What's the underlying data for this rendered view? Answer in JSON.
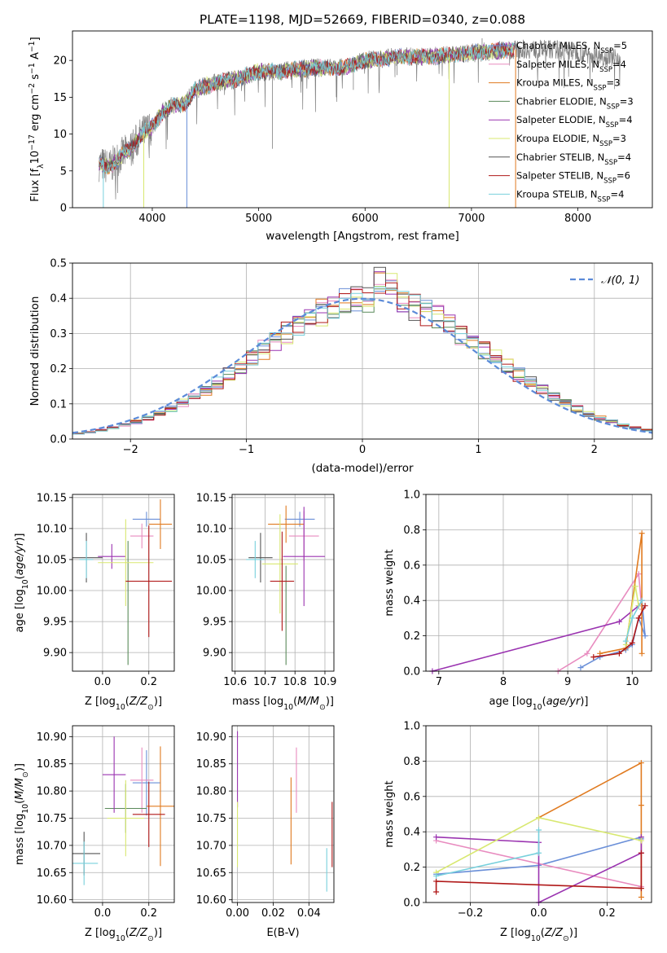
{
  "figure_title": "PLATE=1198, MJD=52669, FIBERID=0340, z=0.088",
  "colors": {
    "chabrier_miles": "#6a8fd8",
    "salpeter_miles": "#e88bbf",
    "kroupa_miles": "#e07a1f",
    "chabrier_elodie": "#5a8a5a",
    "salpeter_elodie": "#9a33b0",
    "kroupa_elodie": "#d8e870",
    "chabrier_stelib": "#555555",
    "salpeter_stelib": "#b01818",
    "kroupa_stelib": "#78d0dc",
    "spectrum": "#808080",
    "gaussian": "#5b8ad8"
  },
  "chart_data": [
    {
      "id": "spectrum",
      "type": "line",
      "title": "PLATE=1198, MJD=52669, FIBERID=0340, z=0.088",
      "xlabel": "wavelength [Angstrom, rest frame]",
      "ylabel": "Flux [f$_\\lambda$10$^{-17}$ erg cm$^{-2}$ s$^{-1}$ A$^{-1}$]",
      "ylabel_parts": [
        "Flux [f",
        "λ",
        "10",
        "−17",
        " erg cm",
        "−2",
        " s",
        "−1",
        " A",
        "−1",
        "]"
      ],
      "xlim": [
        3250,
        8700
      ],
      "ylim": [
        0,
        24
      ],
      "xticks": [
        4000,
        5000,
        6000,
        7000,
        8000
      ],
      "yticks": [
        0,
        5,
        10,
        15,
        20
      ],
      "grid": false,
      "legend_position": "top-right",
      "legend": [
        {
          "pre": "Chabrier MILES, N",
          "sub": "SSP",
          "post": "=5",
          "color": "#6a8fd8"
        },
        {
          "pre": "Salpeter MILES, N",
          "sub": "SSP",
          "post": "=4",
          "color": "#e88bbf"
        },
        {
          "pre": "Kroupa MILES, N",
          "sub": "SSP",
          "post": "=3",
          "color": "#e07a1f"
        },
        {
          "pre": "Chabrier ELODIE, N",
          "sub": "SSP",
          "post": "=3",
          "color": "#5a8a5a"
        },
        {
          "pre": "Salpeter ELODIE, N",
          "sub": "SSP",
          "post": "=4",
          "color": "#9a33b0"
        },
        {
          "pre": "Kroupa ELODIE, N",
          "sub": "SSP",
          "post": "=3",
          "color": "#d8e870"
        },
        {
          "pre": "Chabrier STELIB, N",
          "sub": "SSP",
          "post": "=4",
          "color": "#555555"
        },
        {
          "pre": "Salpeter STELIB, N",
          "sub": "SSP",
          "post": "=6",
          "color": "#b01818"
        },
        {
          "pre": "Kroupa STELIB, N",
          "sub": "SSP",
          "post": "=4",
          "color": "#78d0dc"
        }
      ],
      "continuum_x": [
        3500,
        3600,
        3700,
        3800,
        3900,
        4000,
        4100,
        4200,
        4300,
        4400,
        4600,
        4800,
        5000,
        5200,
        5500,
        5800,
        6000,
        6300,
        6600,
        7000,
        7400,
        7800,
        8300
      ],
      "continuum_y": [
        6,
        5.5,
        7,
        8,
        10,
        11,
        13,
        14,
        14,
        16,
        17,
        17.5,
        18.5,
        18.5,
        19,
        19,
        20,
        20.5,
        20.5,
        21,
        21.5,
        21.5,
        20.5
      ],
      "model_range": [
        3500,
        7400
      ],
      "data_range": [
        3500,
        8400
      ],
      "dropouts": [
        {
          "x": 3540,
          "y": 0,
          "series": 8
        },
        {
          "x": 3920,
          "y": 0,
          "series": 5
        },
        {
          "x": 4325,
          "y": 0,
          "series": 0
        },
        {
          "x": 6790,
          "y": 0,
          "series": 5
        },
        {
          "x": 7415,
          "y": 0,
          "series": 2
        }
      ],
      "spikes": [
        {
          "x": 5130,
          "y": 8
        },
        {
          "x": 5200,
          "y": 19
        },
        {
          "x": 5890,
          "y": 16
        },
        {
          "x": 6300,
          "y": 18
        },
        {
          "x": 7100,
          "y": 23
        }
      ]
    },
    {
      "id": "residual-histogram",
      "type": "line",
      "xlabel": "(data-model)/error",
      "ylabel": "Normed distribution",
      "xlim": [
        -2.5,
        2.5
      ],
      "ylim": [
        0,
        0.5
      ],
      "xticks": [
        -2,
        -1,
        0,
        1,
        2
      ],
      "yticks": [
        0.0,
        0.1,
        0.2,
        0.3,
        0.4,
        0.5
      ],
      "grid": true,
      "legend_position": "top-right",
      "legend": [
        {
          "label": "$\\mathcal{N}(0,1)$",
          "display": "𝒩(0, 1)",
          "style": "dashed",
          "color": "#5b8ad8"
        }
      ],
      "gaussian": {
        "mean": 0,
        "sigma": 1
      },
      "bin_width": 0.1,
      "bins_from": -2.5,
      "histograms_note": "nine step histograms close to N(0,1), one per model; peak near 0.47 around x≈0.25"
    },
    {
      "id": "age-vs-Z",
      "type": "scatter",
      "xlabel": "Z [log$_{10}$($Z/Z_\\odot$)]",
      "ylabel": "age  [log$_{10}$($age/yr$)]",
      "xlim": [
        -0.13,
        0.31
      ],
      "ylim": [
        9.87,
        10.155
      ],
      "xticks": [
        0.0,
        0.2
      ],
      "yticks": [
        9.9,
        9.95,
        10.0,
        10.05,
        10.1,
        10.15
      ],
      "grid": true,
      "points": [
        {
          "series": 0,
          "x": 0.19,
          "y": 10.115,
          "xerr": 0.06,
          "yerr": 0.012
        },
        {
          "series": 1,
          "x": 0.17,
          "y": 10.088,
          "xerr": 0.05,
          "yerr": 0.02
        },
        {
          "series": 2,
          "x": 0.25,
          "y": 10.107,
          "xerr": 0.05,
          "yerr": 0.04
        },
        {
          "series": 3,
          "x": 0.11,
          "y": 9.98,
          "xerr": 0.0,
          "yerr": 0.1
        },
        {
          "series": 4,
          "x": 0.04,
          "y": 10.055,
          "xerr": 0.06,
          "yerr": 0.02
        },
        {
          "series": 5,
          "x": 0.1,
          "y": 10.045,
          "xerr": 0.12,
          "yerr": 0.07
        },
        {
          "series": 6,
          "x": -0.07,
          "y": 10.053,
          "xerr": 0.07,
          "yerr": 0.04
        },
        {
          "series": 7,
          "x": 0.2,
          "y": 10.015,
          "xerr": 0.1,
          "yerr": 0.09
        },
        {
          "series": 8,
          "x": -0.07,
          "y": 10.05,
          "xerr": 0.03,
          "yerr": 0.03
        }
      ]
    },
    {
      "id": "age-vs-mass",
      "type": "scatter",
      "xlabel": "mass [log$_{10}$($M/M_\\odot$)]",
      "ylabel": "",
      "xlim": [
        10.59,
        10.93
      ],
      "ylim": [
        9.87,
        10.155
      ],
      "xticks": [
        10.6,
        10.7,
        10.8,
        10.9
      ],
      "yticks": [
        9.9,
        9.95,
        10.0,
        10.05,
        10.1,
        10.15
      ],
      "grid": true,
      "points": [
        {
          "series": 0,
          "x": 10.816,
          "y": 10.115,
          "xerr": 0.05,
          "yerr": 0.012
        },
        {
          "series": 1,
          "x": 10.83,
          "y": 10.088,
          "xerr": 0.05,
          "yerr": 0.04
        },
        {
          "series": 2,
          "x": 10.77,
          "y": 10.107,
          "xerr": 0.06,
          "yerr": 0.03
        },
        {
          "series": 3,
          "x": 10.77,
          "y": 9.96,
          "xerr": 0.0,
          "yerr": 0.08
        },
        {
          "series": 4,
          "x": 10.83,
          "y": 10.055,
          "xerr": 0.07,
          "yerr": 0.08
        },
        {
          "series": 5,
          "x": 10.75,
          "y": 10.043,
          "xerr": 0.06,
          "yerr": 0.08
        },
        {
          "series": 6,
          "x": 10.685,
          "y": 10.053,
          "xerr": 0.04,
          "yerr": 0.04
        },
        {
          "series": 7,
          "x": 10.757,
          "y": 10.015,
          "xerr": 0.04,
          "yerr": 0.08
        },
        {
          "series": 8,
          "x": 10.667,
          "y": 10.05,
          "xerr": 0.03,
          "yerr": 0.03
        }
      ]
    },
    {
      "id": "mass-weight-vs-age",
      "type": "line",
      "xlabel": "age  [log$_{10}$($age/yr$)]",
      "ylabel": "mass weight",
      "xlim": [
        6.8,
        10.3
      ],
      "ylim": [
        0,
        1.0
      ],
      "xticks": [
        7,
        8,
        9,
        10
      ],
      "yticks": [
        0.0,
        0.2,
        0.4,
        0.6,
        0.8,
        1.0
      ],
      "grid": true,
      "series": [
        {
          "series": 0,
          "x": [
            9.2,
            9.5,
            9.9,
            10.0,
            10.1,
            10.2,
            10.15
          ],
          "y": [
            0.02,
            0.08,
            0.12,
            0.15,
            0.3,
            0.2,
            0.4
          ]
        },
        {
          "series": 1,
          "x": [
            8.85,
            9.3,
            10.1,
            10.15
          ],
          "y": [
            0.0,
            0.1,
            0.55,
            0.35
          ]
        },
        {
          "series": 2,
          "x": [
            9.5,
            9.9,
            10.15,
            10.15
          ],
          "y": [
            0.1,
            0.13,
            0.78,
            0.1
          ]
        },
        {
          "series": 4,
          "x": [
            6.9,
            9.8,
            10.1
          ],
          "y": [
            0.0,
            0.28,
            0.37
          ]
        },
        {
          "series": 5,
          "x": [
            9.9,
            10.05,
            10.1
          ],
          "y": [
            0.15,
            0.48,
            0.37
          ]
        },
        {
          "series": 7,
          "x": [
            9.4,
            9.8,
            10.0,
            10.1,
            10.2
          ],
          "y": [
            0.08,
            0.1,
            0.16,
            0.3,
            0.37
          ]
        },
        {
          "series": 8,
          "x": [
            9.9,
            10.0,
            10.15
          ],
          "y": [
            0.17,
            0.3,
            0.4
          ]
        }
      ]
    },
    {
      "id": "mass-vs-Z",
      "type": "scatter",
      "xlabel": "Z [log$_{10}$($Z/Z_\\odot$)]",
      "ylabel": "mass [log$_{10}$($M/M_\\odot$)]",
      "xlim": [
        -0.13,
        0.31
      ],
      "ylim": [
        10.595,
        10.92
      ],
      "xticks": [
        0.0,
        0.2
      ],
      "yticks": [
        10.6,
        10.65,
        10.7,
        10.75,
        10.8,
        10.85,
        10.9
      ],
      "grid": true,
      "points": [
        {
          "series": 0,
          "x": 0.19,
          "y": 10.815,
          "xerr": 0.06,
          "yerr": 0.06
        },
        {
          "series": 1,
          "x": 0.17,
          "y": 10.82,
          "xerr": 0.05,
          "yerr": 0.06
        },
        {
          "series": 2,
          "x": 0.25,
          "y": 10.772,
          "xerr": 0.06,
          "yerr": 0.11
        },
        {
          "series": 3,
          "x": 0.1,
          "y": 10.768,
          "xerr": 0.09,
          "yerr": 0.045
        },
        {
          "series": 4,
          "x": 0.05,
          "y": 10.83,
          "xerr": 0.05,
          "yerr": 0.07
        },
        {
          "series": 5,
          "x": 0.1,
          "y": 10.75,
          "xerr": 0.08,
          "yerr": 0.07
        },
        {
          "series": 6,
          "x": -0.08,
          "y": 10.685,
          "xerr": 0.07,
          "yerr": 0.04
        },
        {
          "series": 7,
          "x": 0.2,
          "y": 10.757,
          "xerr": 0.07,
          "yerr": 0.06
        },
        {
          "series": 8,
          "x": -0.08,
          "y": 10.667,
          "xerr": 0.06,
          "yerr": 0.04
        }
      ]
    },
    {
      "id": "mass-vs-EBV",
      "type": "scatter",
      "xlabel": "E(B-V)",
      "ylabel": "",
      "xlim": [
        -0.003,
        0.054
      ],
      "ylim": [
        10.595,
        10.92
      ],
      "xticks": [
        0.0,
        0.02,
        0.04
      ],
      "yticks": [
        10.6,
        10.65,
        10.7,
        10.75,
        10.8,
        10.85,
        10.9
      ],
      "grid": true,
      "points": [
        {
          "series": 4,
          "x": 0.0,
          "y": 10.84,
          "xerr": 0,
          "yerr": 0.07
        },
        {
          "series": 5,
          "x": 0.0,
          "y": 10.72,
          "xerr": 0,
          "yerr": 0.06
        },
        {
          "series": 2,
          "x": 0.03,
          "y": 10.745,
          "xerr": 0,
          "yerr": 0.08
        },
        {
          "series": 1,
          "x": 0.033,
          "y": 10.82,
          "xerr": 0,
          "yerr": 0.06
        },
        {
          "series": 8,
          "x": 0.05,
          "y": 10.655,
          "xerr": 0,
          "yerr": 0.04
        },
        {
          "series": 7,
          "x": 0.053,
          "y": 10.72,
          "xerr": 0,
          "yerr": 0.06
        }
      ]
    },
    {
      "id": "mass-weight-vs-Z",
      "type": "line",
      "xlabel": "Z [log$_{10}$($Z/Z_\\odot$)]",
      "ylabel": "mass weight",
      "xlim": [
        -0.33,
        0.33
      ],
      "ylim": [
        0,
        1.0
      ],
      "xticks": [
        -0.2,
        0.0,
        0.2
      ],
      "yticks": [
        0.0,
        0.2,
        0.4,
        0.6,
        0.8,
        1.0
      ],
      "grid": true,
      "series": [
        {
          "series": 0,
          "x": [
            -0.3,
            0.0,
            0.3,
            0.3
          ],
          "y": [
            0.16,
            0.21,
            0.37,
            0.36
          ]
        },
        {
          "series": 1,
          "x": [
            -0.3,
            0.3
          ],
          "y": [
            0.35,
            0.09
          ]
        },
        {
          "series": 2,
          "x": [
            0.0,
            0.3,
            0.3,
            0.3
          ],
          "y": [
            0.48,
            0.79,
            0.55,
            0.03
          ]
        },
        {
          "series": 4,
          "x": [
            -0.3,
            0.0,
            0.0,
            0.3,
            0.3
          ],
          "y": [
            0.37,
            0.34,
            0.0,
            0.28,
            0.37
          ]
        },
        {
          "series": 5,
          "x": [
            -0.3,
            0.0,
            0.3
          ],
          "y": [
            0.17,
            0.48,
            0.35
          ]
        },
        {
          "series": 7,
          "x": [
            -0.3,
            -0.3,
            0.3,
            0.3
          ],
          "y": [
            0.06,
            0.12,
            0.08,
            0.28
          ]
        },
        {
          "series": 8,
          "x": [
            -0.3,
            0.0,
            0.0
          ],
          "y": [
            0.15,
            0.28,
            0.41
          ]
        }
      ]
    }
  ]
}
